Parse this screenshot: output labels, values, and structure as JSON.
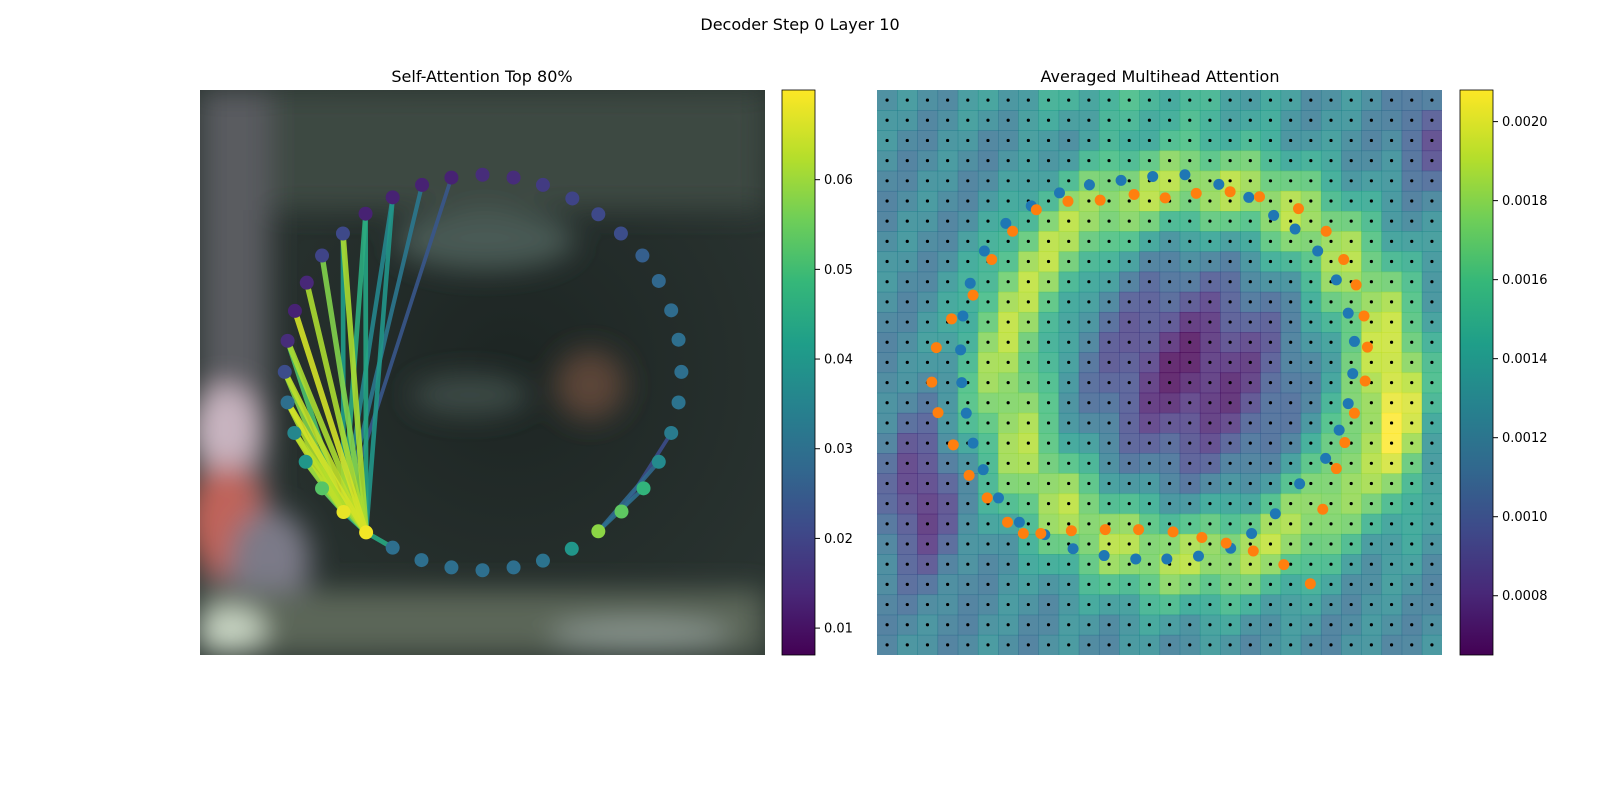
{
  "figure": {
    "suptitle": "Decoder Step 0 Layer 10"
  },
  "colors": {
    "viridis": [
      "#440154",
      "#482878",
      "#3e4989",
      "#31688e",
      "#26828e",
      "#1f9e89",
      "#35b779",
      "#6ece58",
      "#b5de2b",
      "#fde725"
    ],
    "contour_blue": "#1f77b4",
    "contour_orange": "#ff7f0e",
    "grid_dot": "#000000"
  },
  "chart_data": [
    {
      "type": "scatter",
      "title": "Self-Attention Top 80%",
      "xlim": [
        0,
        1
      ],
      "ylim": [
        0,
        1
      ],
      "colorbar": {
        "range": [
          0.007,
          0.07
        ],
        "ticks": [
          0.01,
          0.02,
          0.03,
          0.04,
          0.05,
          0.06
        ],
        "tick_labels": [
          "0.01",
          "0.02",
          "0.03",
          "0.04",
          "0.05",
          "0.06"
        ]
      },
      "points": [
        {
          "x": 0.5,
          "y": 0.85,
          "v": 0.015
        },
        {
          "x": 0.555,
          "y": 0.845,
          "v": 0.015
        },
        {
          "x": 0.607,
          "y": 0.832,
          "v": 0.018
        },
        {
          "x": 0.659,
          "y": 0.808,
          "v": 0.02
        },
        {
          "x": 0.705,
          "y": 0.78,
          "v": 0.021
        },
        {
          "x": 0.745,
          "y": 0.746,
          "v": 0.022
        },
        {
          "x": 0.783,
          "y": 0.707,
          "v": 0.026
        },
        {
          "x": 0.812,
          "y": 0.662,
          "v": 0.028
        },
        {
          "x": 0.834,
          "y": 0.61,
          "v": 0.029
        },
        {
          "x": 0.847,
          "y": 0.558,
          "v": 0.03
        },
        {
          "x": 0.852,
          "y": 0.501,
          "v": 0.03
        },
        {
          "x": 0.847,
          "y": 0.447,
          "v": 0.031
        },
        {
          "x": 0.834,
          "y": 0.393,
          "v": 0.033
        },
        {
          "x": 0.812,
          "y": 0.342,
          "v": 0.037
        },
        {
          "x": 0.785,
          "y": 0.295,
          "v": 0.048
        },
        {
          "x": 0.746,
          "y": 0.254,
          "v": 0.054
        },
        {
          "x": 0.705,
          "y": 0.219,
          "v": 0.059
        },
        {
          "x": 0.658,
          "y": 0.188,
          "v": 0.04
        },
        {
          "x": 0.607,
          "y": 0.167,
          "v": 0.031
        },
        {
          "x": 0.555,
          "y": 0.155,
          "v": 0.03
        },
        {
          "x": 0.5,
          "y": 0.15,
          "v": 0.03
        },
        {
          "x": 0.445,
          "y": 0.155,
          "v": 0.03
        },
        {
          "x": 0.392,
          "y": 0.168,
          "v": 0.03
        },
        {
          "x": 0.341,
          "y": 0.19,
          "v": 0.03
        },
        {
          "x": 0.294,
          "y": 0.217,
          "v": 0.069
        },
        {
          "x": 0.254,
          "y": 0.253,
          "v": 0.068
        },
        {
          "x": 0.216,
          "y": 0.295,
          "v": 0.053
        },
        {
          "x": 0.187,
          "y": 0.342,
          "v": 0.04
        },
        {
          "x": 0.167,
          "y": 0.393,
          "v": 0.036
        },
        {
          "x": 0.155,
          "y": 0.447,
          "v": 0.03
        },
        {
          "x": 0.15,
          "y": 0.501,
          "v": 0.022
        },
        {
          "x": 0.155,
          "y": 0.556,
          "v": 0.015
        },
        {
          "x": 0.168,
          "y": 0.609,
          "v": 0.013
        },
        {
          "x": 0.189,
          "y": 0.659,
          "v": 0.014
        },
        {
          "x": 0.216,
          "y": 0.707,
          "v": 0.02
        },
        {
          "x": 0.253,
          "y": 0.746,
          "v": 0.021
        },
        {
          "x": 0.293,
          "y": 0.781,
          "v": 0.013
        },
        {
          "x": 0.341,
          "y": 0.81,
          "v": 0.013
        },
        {
          "x": 0.393,
          "y": 0.832,
          "v": 0.013
        },
        {
          "x": 0.445,
          "y": 0.845,
          "v": 0.013
        }
      ],
      "edges": [
        {
          "from": 24,
          "to": 25,
          "v": 0.04
        },
        {
          "from": 24,
          "to": 26,
          "v": 0.052
        },
        {
          "from": 24,
          "to": 27,
          "v": 0.06
        },
        {
          "from": 24,
          "to": 28,
          "v": 0.063
        },
        {
          "from": 24,
          "to": 29,
          "v": 0.066
        },
        {
          "from": 24,
          "to": 30,
          "v": 0.064
        },
        {
          "from": 24,
          "to": 31,
          "v": 0.062
        },
        {
          "from": 24,
          "to": 32,
          "v": 0.066
        },
        {
          "from": 24,
          "to": 33,
          "v": 0.062
        },
        {
          "from": 24,
          "to": 34,
          "v": 0.058
        },
        {
          "from": 24,
          "to": 35,
          "v": 0.062
        },
        {
          "from": 24,
          "to": 36,
          "v": 0.044
        },
        {
          "from": 24,
          "to": 37,
          "v": 0.04
        },
        {
          "from": 24,
          "to": 23,
          "v": 0.045
        },
        {
          "from": 25,
          "to": 26,
          "v": 0.055
        },
        {
          "from": 25,
          "to": 27,
          "v": 0.06
        },
        {
          "from": 25,
          "to": 28,
          "v": 0.064
        },
        {
          "from": 25,
          "to": 29,
          "v": 0.062
        },
        {
          "from": 25,
          "to": 30,
          "v": 0.058
        },
        {
          "from": 25,
          "to": 31,
          "v": 0.052
        },
        {
          "from": 25,
          "to": 35,
          "v": 0.042
        },
        {
          "from": 25,
          "to": 36,
          "v": 0.046
        },
        {
          "from": 25,
          "to": 37,
          "v": 0.036
        },
        {
          "from": 25,
          "to": 38,
          "v": 0.032
        },
        {
          "from": 25,
          "to": 39,
          "v": 0.024
        },
        {
          "from": 16,
          "to": 13,
          "v": 0.028
        },
        {
          "from": 16,
          "to": 14,
          "v": 0.03
        },
        {
          "from": 15,
          "to": 12,
          "v": 0.022
        }
      ]
    },
    {
      "type": "heatmap",
      "title": "Averaged Multihead Attention",
      "grid": {
        "cols": 28,
        "rows": 28
      },
      "xlim": [
        0,
        1
      ],
      "ylim": [
        0,
        1
      ],
      "colorbar": {
        "range": [
          0.00065,
          0.00208
        ],
        "ticks": [
          0.0008,
          0.001,
          0.0012,
          0.0014,
          0.0016,
          0.0018,
          0.002
        ],
        "tick_labels": [
          "0.0008",
          "0.0010",
          "0.0012",
          "0.0014",
          "0.0016",
          "0.0018",
          "0.0020"
        ]
      },
      "contours": [
        {
          "name": "",
          "color": "#1f77b4",
          "points": [
            {
              "x": 0.545,
              "y": 0.85
            },
            {
              "x": 0.488,
              "y": 0.847
            },
            {
              "x": 0.432,
              "y": 0.84
            },
            {
              "x": 0.376,
              "y": 0.832
            },
            {
              "x": 0.323,
              "y": 0.818
            },
            {
              "x": 0.273,
              "y": 0.795
            },
            {
              "x": 0.228,
              "y": 0.764
            },
            {
              "x": 0.19,
              "y": 0.715
            },
            {
              "x": 0.165,
              "y": 0.658
            },
            {
              "x": 0.152,
              "y": 0.6
            },
            {
              "x": 0.148,
              "y": 0.54
            },
            {
              "x": 0.15,
              "y": 0.482
            },
            {
              "x": 0.158,
              "y": 0.428
            },
            {
              "x": 0.17,
              "y": 0.375
            },
            {
              "x": 0.188,
              "y": 0.328
            },
            {
              "x": 0.215,
              "y": 0.278
            },
            {
              "x": 0.252,
              "y": 0.235
            },
            {
              "x": 0.297,
              "y": 0.213
            },
            {
              "x": 0.347,
              "y": 0.188
            },
            {
              "x": 0.402,
              "y": 0.176
            },
            {
              "x": 0.458,
              "y": 0.17
            },
            {
              "x": 0.513,
              "y": 0.17
            },
            {
              "x": 0.569,
              "y": 0.175
            },
            {
              "x": 0.626,
              "y": 0.189
            },
            {
              "x": 0.663,
              "y": 0.215
            },
            {
              "x": 0.705,
              "y": 0.25
            },
            {
              "x": 0.748,
              "y": 0.303
            },
            {
              "x": 0.794,
              "y": 0.348
            },
            {
              "x": 0.818,
              "y": 0.398
            },
            {
              "x": 0.834,
              "y": 0.445
            },
            {
              "x": 0.842,
              "y": 0.498
            },
            {
              "x": 0.845,
              "y": 0.555
            },
            {
              "x": 0.834,
              "y": 0.605
            },
            {
              "x": 0.813,
              "y": 0.664
            },
            {
              "x": 0.78,
              "y": 0.715
            },
            {
              "x": 0.74,
              "y": 0.754
            },
            {
              "x": 0.702,
              "y": 0.778
            },
            {
              "x": 0.658,
              "y": 0.81
            },
            {
              "x": 0.605,
              "y": 0.833
            }
          ]
        },
        {
          "name": "",
          "color": "#ff7f0e",
          "points": [
            {
              "x": 0.565,
              "y": 0.817
            },
            {
              "x": 0.51,
              "y": 0.809
            },
            {
              "x": 0.455,
              "y": 0.815
            },
            {
              "x": 0.395,
              "y": 0.805
            },
            {
              "x": 0.338,
              "y": 0.803
            },
            {
              "x": 0.282,
              "y": 0.788
            },
            {
              "x": 0.24,
              "y": 0.75
            },
            {
              "x": 0.203,
              "y": 0.7
            },
            {
              "x": 0.17,
              "y": 0.637
            },
            {
              "x": 0.132,
              "y": 0.595
            },
            {
              "x": 0.105,
              "y": 0.544
            },
            {
              "x": 0.097,
              "y": 0.483
            },
            {
              "x": 0.108,
              "y": 0.429
            },
            {
              "x": 0.135,
              "y": 0.372
            },
            {
              "x": 0.163,
              "y": 0.318
            },
            {
              "x": 0.195,
              "y": 0.278
            },
            {
              "x": 0.231,
              "y": 0.235
            },
            {
              "x": 0.259,
              "y": 0.215
            },
            {
              "x": 0.29,
              "y": 0.215
            },
            {
              "x": 0.344,
              "y": 0.22
            },
            {
              "x": 0.404,
              "y": 0.222
            },
            {
              "x": 0.463,
              "y": 0.222
            },
            {
              "x": 0.524,
              "y": 0.218
            },
            {
              "x": 0.575,
              "y": 0.208
            },
            {
              "x": 0.618,
              "y": 0.198
            },
            {
              "x": 0.666,
              "y": 0.184
            },
            {
              "x": 0.72,
              "y": 0.16
            },
            {
              "x": 0.767,
              "y": 0.126
            },
            {
              "x": 0.789,
              "y": 0.258
            },
            {
              "x": 0.813,
              "y": 0.33
            },
            {
              "x": 0.828,
              "y": 0.376
            },
            {
              "x": 0.845,
              "y": 0.428
            },
            {
              "x": 0.864,
              "y": 0.485
            },
            {
              "x": 0.868,
              "y": 0.545
            },
            {
              "x": 0.862,
              "y": 0.6
            },
            {
              "x": 0.848,
              "y": 0.655
            },
            {
              "x": 0.826,
              "y": 0.7
            },
            {
              "x": 0.795,
              "y": 0.75
            },
            {
              "x": 0.746,
              "y": 0.79
            },
            {
              "x": 0.677,
              "y": 0.811
            },
            {
              "x": 0.625,
              "y": 0.82
            }
          ]
        }
      ]
    }
  ]
}
